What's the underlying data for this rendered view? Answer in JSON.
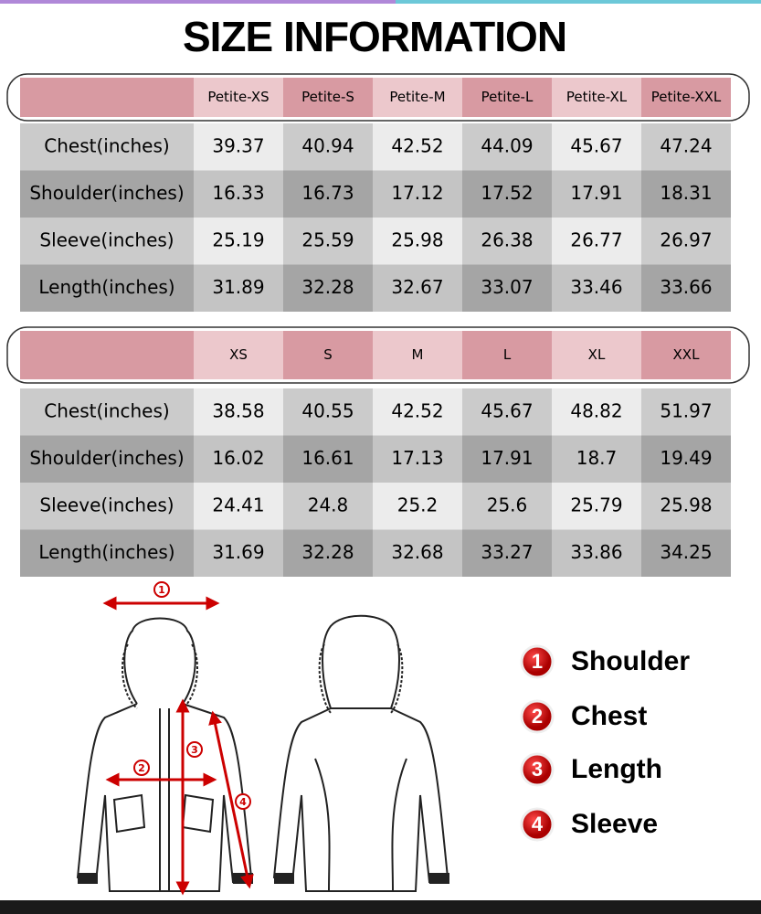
{
  "header": {
    "title": "SIZE INFORMATION"
  },
  "tables": [
    {
      "columns": [
        "Petite-XS",
        "Petite-S",
        "Petite-M",
        "Petite-L",
        "Petite-XL",
        "Petite-XXL"
      ],
      "rows": [
        {
          "label": "Chest(inches)",
          "cells": [
            "39.37",
            "40.94",
            "42.52",
            "44.09",
            "45.67",
            "47.24"
          ]
        },
        {
          "label": "Shoulder(inches)",
          "cells": [
            "16.33",
            "16.73",
            "17.12",
            "17.52",
            "17.91",
            "18.31"
          ]
        },
        {
          "label": "Sleeve(inches)",
          "cells": [
            "25.19",
            "25.59",
            "25.98",
            "26.38",
            "26.77",
            "26.97"
          ]
        },
        {
          "label": "Length(inches)",
          "cells": [
            "31.89",
            "32.28",
            "32.67",
            "33.07",
            "33.46",
            "33.66"
          ]
        }
      ]
    },
    {
      "columns": [
        "XS",
        "S",
        "M",
        "L",
        "XL",
        "XXL"
      ],
      "rows": [
        {
          "label": "Chest(inches)",
          "cells": [
            "38.58",
            "40.55",
            "42.52",
            "45.67",
            "48.82",
            "51.97"
          ]
        },
        {
          "label": "Shoulder(inches)",
          "cells": [
            "16.02",
            "16.61",
            "17.13",
            "17.91",
            "18.7",
            "19.49"
          ]
        },
        {
          "label": "Sleeve(inches)",
          "cells": [
            "24.41",
            "24.8",
            "25.2",
            "25.6",
            "25.79",
            "25.98"
          ]
        },
        {
          "label": "Length(inches)",
          "cells": [
            "31.69",
            "32.28",
            "32.68",
            "33.27",
            "33.86",
            "34.25"
          ]
        }
      ]
    }
  ],
  "legend": [
    {
      "number": "1",
      "label": "Shoulder"
    },
    {
      "number": "2",
      "label": "Chest"
    },
    {
      "number": "3",
      "label": "Length"
    },
    {
      "number": "4",
      "label": "Sleeve"
    }
  ]
}
